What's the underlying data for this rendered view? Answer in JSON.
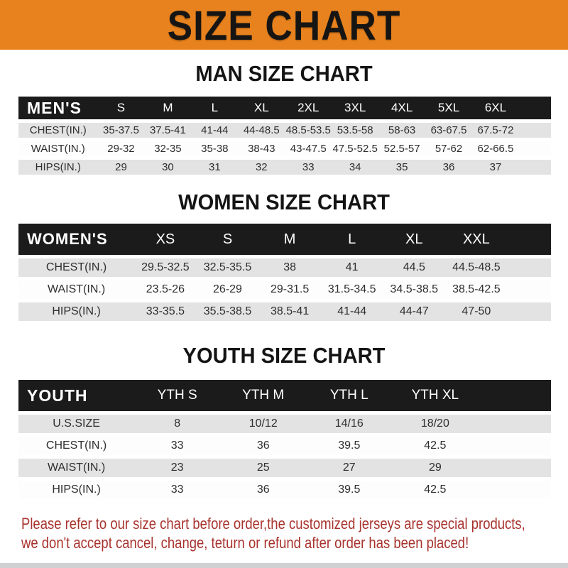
{
  "banner": {
    "title": "SIZE CHART"
  },
  "colors": {
    "banner_bg": "#E8821E",
    "header_bar": "#1B1B1B",
    "row_gray": "#E3E3E3",
    "footer_red": "#A8332E"
  },
  "men": {
    "heading": "MAN SIZE CHART",
    "table": {
      "label": "MEN'S",
      "columns": [
        "S",
        "M",
        "L",
        "XL",
        "2XL",
        "3XL",
        "4XL",
        "5XL",
        "6XL"
      ],
      "rows": [
        {
          "label": "CHEST(IN.)",
          "values": [
            "35-37.5",
            "37.5-41",
            "41-44",
            "44-48.5",
            "48.5-53.5",
            "53.5-58",
            "58-63",
            "63-67.5",
            "67.5-72"
          ]
        },
        {
          "label": "WAIST(IN.)",
          "values": [
            "29-32",
            "32-35",
            "35-38",
            "38-43",
            "43-47.5",
            "47.5-52.5",
            "52.5-57",
            "57-62",
            "62-66.5"
          ]
        },
        {
          "label": "HIPS(IN.)",
          "values": [
            "29",
            "30",
            "31",
            "32",
            "33",
            "34",
            "35",
            "36",
            "37"
          ]
        }
      ]
    }
  },
  "women": {
    "heading": "WOMEN SIZE CHART",
    "table": {
      "label": "WOMEN'S",
      "columns": [
        "XS",
        "S",
        "M",
        "L",
        "XL",
        "XXL"
      ],
      "rows": [
        {
          "label": "CHEST(IN.)",
          "values": [
            "29.5-32.5",
            "32.5-35.5",
            "38",
            "41",
            "44.5",
            "44.5-48.5"
          ]
        },
        {
          "label": "WAIST(IN.)",
          "values": [
            "23.5-26",
            "26-29",
            "29-31.5",
            "31.5-34.5",
            "34.5-38.5",
            "38.5-42.5"
          ]
        },
        {
          "label": "HIPS(IN.)",
          "values": [
            "33-35.5",
            "35.5-38.5",
            "38.5-41",
            "41-44",
            "44-47",
            "47-50"
          ]
        }
      ]
    }
  },
  "youth": {
    "heading": "YOUTH SIZE CHART",
    "table": {
      "label": "YOUTH",
      "columns": [
        "YTH S",
        "YTH M",
        "YTH L",
        "YTH XL"
      ],
      "rows": [
        {
          "label": "U.S.SIZE",
          "values": [
            "8",
            "10/12",
            "14/16",
            "18/20"
          ]
        },
        {
          "label": "CHEST(IN.)",
          "values": [
            "33",
            "36",
            "39.5",
            "42.5"
          ]
        },
        {
          "label": "WAIST(IN.)",
          "values": [
            "23",
            "25",
            "27",
            "29"
          ]
        },
        {
          "label": "HIPS(IN.)",
          "values": [
            "33",
            "36",
            "39.5",
            "42.5"
          ]
        }
      ]
    }
  },
  "footer": {
    "line1": "Please refer to our size chart before order,the customized jerseys are special products,",
    "line2": "we don't accept cancel, change, teturn or refund after order has been placed!"
  }
}
